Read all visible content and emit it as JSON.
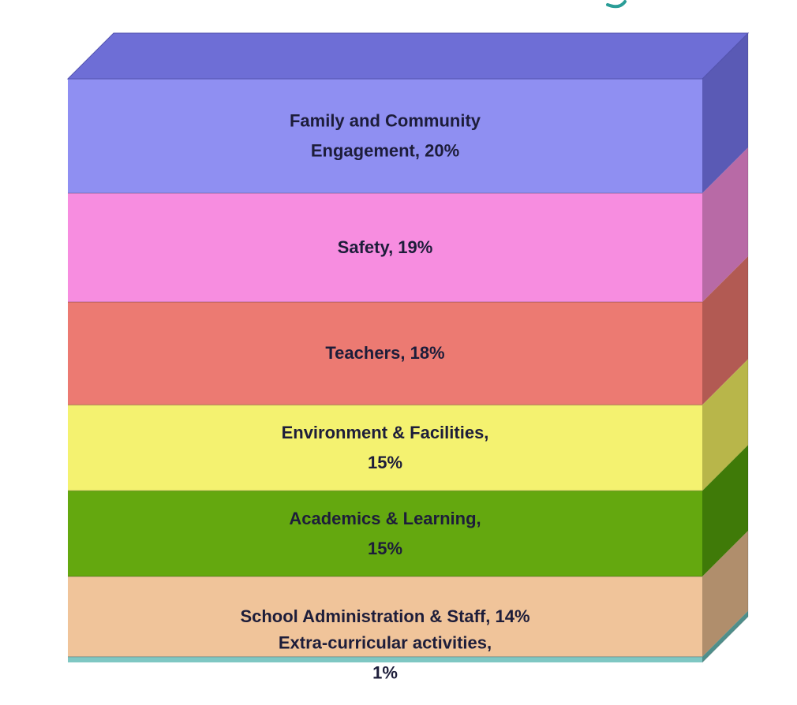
{
  "chart_data": {
    "type": "bar",
    "subtype": "stacked-100-3d",
    "title": "",
    "xlabel": "",
    "ylabel": "",
    "legend": "none",
    "grid": false,
    "segments": [
      {
        "name": "Family and Community Engagement",
        "value": 20,
        "label_lines": [
          "Family and Community",
          "Engagement, 20%"
        ],
        "color": "#8f8ff2",
        "side_color": "#5a5ab5"
      },
      {
        "name": "Safety",
        "value": 19,
        "label_lines": [
          "Safety, 19%"
        ],
        "color": "#f78de0",
        "side_color": "#b86aa6"
      },
      {
        "name": "Teachers",
        "value": 18,
        "label_lines": [
          "Teachers, 18%"
        ],
        "color": "#ec7a72",
        "side_color": "#b25a53"
      },
      {
        "name": "Environment & Facilities",
        "value": 15,
        "label_lines": [
          "Environment & Facilities,",
          "15%"
        ],
        "color": "#f4f270",
        "side_color": "#b8b64a"
      },
      {
        "name": "Academics & Learning",
        "value": 15,
        "label_lines": [
          "Academics & Learning,",
          "15%"
        ],
        "color": "#64a80f",
        "side_color": "#3f7a08"
      },
      {
        "name": "School Administration & Staff",
        "value": 14,
        "label_lines": [
          "School Administration & Staff, 14%"
        ],
        "color": "#f0c49a",
        "side_color": "#b08e6c"
      },
      {
        "name": "Extra-curricular activities",
        "value": 1,
        "label_lines": [
          "Extra-curricular  activities,",
          "1%"
        ],
        "color": "#7fc7c3",
        "side_color": "#4f8f8b"
      }
    ],
    "top_color": "#6e6ed6"
  }
}
